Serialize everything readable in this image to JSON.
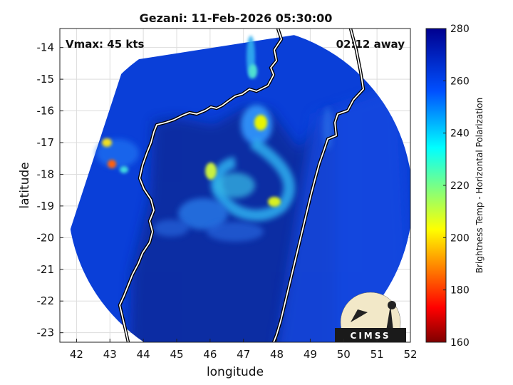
{
  "title": "Gezani: 11-Feb-2026 05:30:00",
  "vmax_label": "Vmax: 45 kts",
  "time_away_label": "02:12 away",
  "logo_text": "CIMSS",
  "colors": {
    "ocean_deep": "#0a2a9a",
    "ocean": "#0a3fd8",
    "background": "#ffffff",
    "coast": "#ffffff"
  },
  "chart_data": {
    "type": "heatmap",
    "title": "Gezani: 11-Feb-2026 05:30:00",
    "xlabel": "longitude",
    "ylabel": "latitude",
    "xlim": [
      41.5,
      52
    ],
    "ylim": [
      -23.3,
      -13.4
    ],
    "x_ticks": [
      42,
      43,
      44,
      45,
      46,
      47,
      48,
      49,
      50,
      51,
      52
    ],
    "y_ticks": [
      -14,
      -15,
      -16,
      -17,
      -18,
      -19,
      -20,
      -21,
      -22,
      -23
    ],
    "grid": true,
    "colorbar": {
      "label": "Brightness Temp - Horizontal Polarization",
      "min": 160,
      "max": 280,
      "ticks": [
        160,
        180,
        200,
        220,
        240,
        260,
        280
      ]
    }
  }
}
